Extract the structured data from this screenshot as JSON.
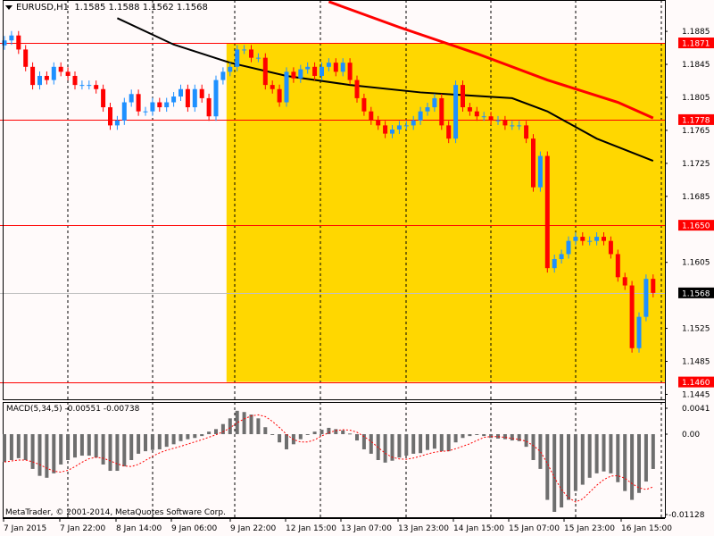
{
  "header": {
    "symbol": "EURUSD,H1",
    "ohlc": "1.1585 1.1588 1.1562 1.1568"
  },
  "macd_panel": {
    "label": "MACD(5,34,5)",
    "values": "-0.00551 -0.00738"
  },
  "copyright": "MetaTrader, © 2001-2014, MetaQuotes Software Corp.",
  "colors": {
    "background": "#FFFAFA",
    "bull_candle": "#1E90FF",
    "bear_candle": "#FF0000",
    "highlight_zone": "#FFD700",
    "ma_slow": "#FF0000",
    "ma_fast": "#000000",
    "level_line": "#FF0000",
    "histogram": "#6E6E6E",
    "signal_line": "#FF0000",
    "current_price_tag": "#000000"
  },
  "chart_data": [
    {
      "type": "candlestick",
      "symbol": "EURUSD",
      "timeframe": "H1",
      "ylim": [
        1.1439,
        1.1923
      ],
      "first_open": 1.1868,
      "closes": [
        1.1874,
        1.188,
        1.1863,
        1.1842,
        1.182,
        1.1831,
        1.1826,
        1.1842,
        1.1836,
        1.1831,
        1.182,
        1.182,
        1.182,
        1.1815,
        1.1793,
        1.1771,
        1.1777,
        1.1799,
        1.1809,
        1.1788,
        1.1788,
        1.1799,
        1.1793,
        1.1799,
        1.1806,
        1.1815,
        1.1793,
        1.1815,
        1.1804,
        1.1782,
        1.1826,
        1.1836,
        1.1842,
        1.1863,
        1.1863,
        1.1853,
        1.1853,
        1.182,
        1.1815,
        1.1799,
        1.1836,
        1.1828,
        1.1839,
        1.1842,
        1.1831,
        1.1842,
        1.1847,
        1.1836,
        1.1847,
        1.1826,
        1.1804,
        1.1788,
        1.1777,
        1.1771,
        1.1761,
        1.1766,
        1.1771,
        1.1771,
        1.1777,
        1.1788,
        1.1793,
        1.1804,
        1.1771,
        1.1755,
        1.182,
        1.1793,
        1.1788,
        1.1782,
        1.1782,
        1.1777,
        1.1777,
        1.1771,
        1.1771,
        1.1771,
        1.1755,
        1.1696,
        1.1734,
        1.1598,
        1.1609,
        1.1615,
        1.1631,
        1.1636,
        1.1631,
        1.1631,
        1.1636,
        1.1631,
        1.1615,
        1.1587,
        1.1577,
        1.1501,
        1.1539,
        1.1585,
        1.1568
      ],
      "moving_averages": [
        {
          "color": "#FF0000",
          "points": [
            [
              46,
              1.1921
            ],
            [
              56,
              1.189
            ],
            [
              67,
              1.1858
            ],
            [
              77,
              1.1826
            ],
            [
              87,
              1.1799
            ],
            [
              92,
              1.178
            ]
          ]
        },
        {
          "color": "#000000",
          "points": [
            [
              16,
              1.1901
            ],
            [
              24,
              1.1869
            ],
            [
              32,
              1.1847
            ],
            [
              40,
              1.1831
            ],
            [
              49,
              1.182
            ],
            [
              59,
              1.1811
            ],
            [
              72,
              1.1804
            ],
            [
              77,
              1.1788
            ],
            [
              84,
              1.1755
            ],
            [
              92,
              1.1728
            ]
          ]
        }
      ],
      "price_ticks": [
        "1.1885",
        "1.1845",
        "1.1805",
        "1.1765",
        "1.1725",
        "1.1685",
        "1.1605",
        "1.1525",
        "1.1485",
        "1.1445"
      ],
      "levels": [
        {
          "price": 1.1871,
          "label": "1.1871",
          "kind": "line"
        },
        {
          "price": 1.1778,
          "label": "1.1778",
          "kind": "line"
        },
        {
          "price": 1.165,
          "label": "1.1650",
          "kind": "line"
        },
        {
          "price": 1.146,
          "label": "1.1460",
          "kind": "line"
        },
        {
          "price": 1.1568,
          "label": "1.1568",
          "kind": "current"
        }
      ],
      "highlight_zone": {
        "from_bar": 32,
        "top": 1.1871,
        "bottom": 1.146
      },
      "time_ticks": [
        "7 Jan 2015",
        "7 Jan 22:00",
        "8 Jan 14:00",
        "9 Jan 06:00",
        "9 Jan 22:00",
        "12 Jan 15:00",
        "13 Jan 07:00",
        "13 Jan 23:00",
        "14 Jan 15:00",
        "15 Jan 07:00",
        "15 Jan 23:00",
        "16 Jan 15:00"
      ],
      "grid": "daily period separators (dashed)"
    },
    {
      "type": "bar",
      "indicator": "MACD(5,34,5)",
      "ylim": [
        -0.01128,
        0.0041
      ],
      "y_ticks": [
        "0.0041",
        "0.00",
        "-0.01128"
      ],
      "histogram": [
        -0.0044,
        -0.0041,
        -0.0038,
        -0.0041,
        -0.0055,
        -0.0066,
        -0.0069,
        -0.0062,
        -0.0048,
        -0.0041,
        -0.0037,
        -0.0034,
        -0.0034,
        -0.0037,
        -0.0048,
        -0.0058,
        -0.0058,
        -0.0051,
        -0.0041,
        -0.0031,
        -0.0027,
        -0.0025,
        -0.0024,
        -0.002,
        -0.0016,
        -0.0011,
        -0.0008,
        -0.0006,
        -0.0003,
        0.0004,
        0.0008,
        0.0016,
        0.0025,
        0.0037,
        0.0035,
        0.0031,
        0.0025,
        0.0011,
        -0.0001,
        -0.0013,
        -0.0024,
        -0.0016,
        -0.0008,
        -0.0001,
        0.0004,
        0.0007,
        0.001,
        0.0008,
        0.0006,
        0.0001,
        -0.001,
        -0.0024,
        -0.0031,
        -0.0041,
        -0.0045,
        -0.0042,
        -0.0037,
        -0.0034,
        -0.0031,
        -0.003,
        -0.0025,
        -0.0023,
        -0.0027,
        -0.0027,
        -0.0013,
        -0.0006,
        -0.0003,
        -0.0001,
        -0.0003,
        -0.0006,
        -0.0007,
        -0.0008,
        -0.001,
        -0.0011,
        -0.002,
        -0.0041,
        -0.0055,
        -0.0104,
        -0.0123,
        -0.0116,
        -0.0104,
        -0.009,
        -0.008,
        -0.0069,
        -0.0062,
        -0.0059,
        -0.0062,
        -0.0076,
        -0.009,
        -0.0104,
        -0.0093,
        -0.0075,
        -0.00551
      ],
      "signal_last": -0.00738
    }
  ]
}
